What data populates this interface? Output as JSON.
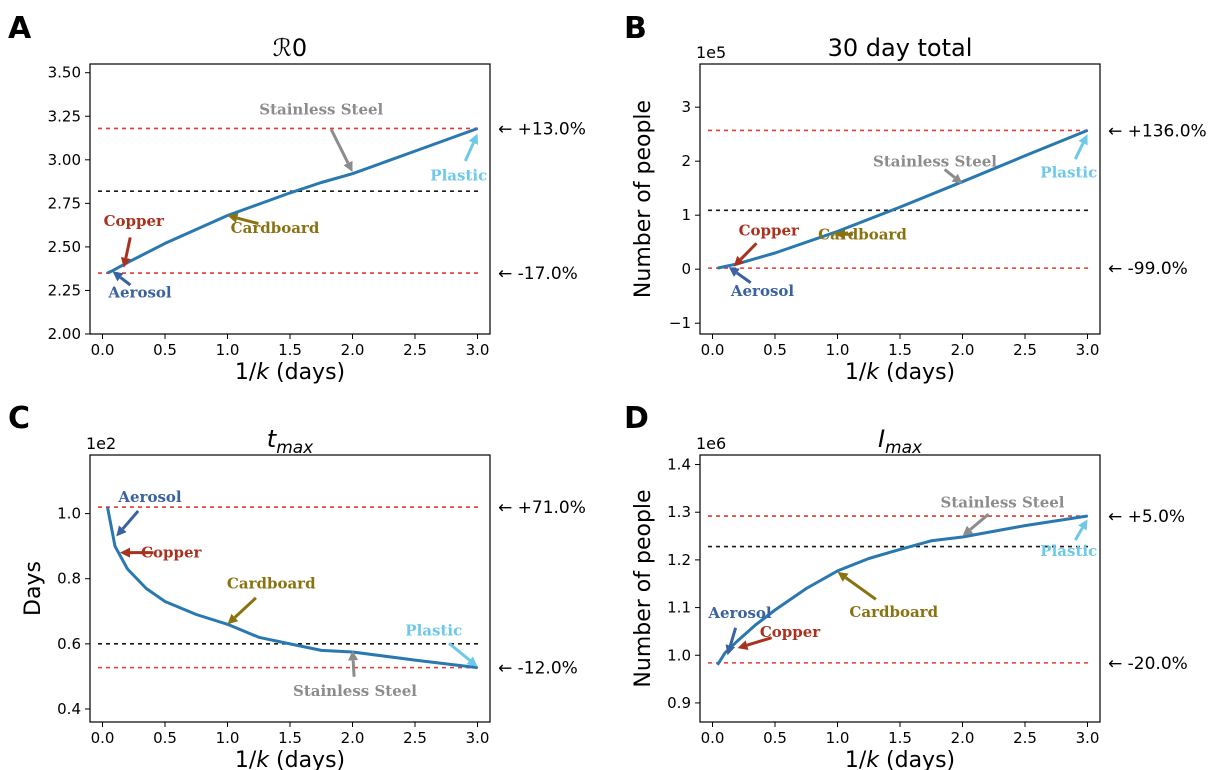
{
  "chart_data": [
    {
      "type": "line",
      "panel_label": "A",
      "title": "ℛ0",
      "xlabel": "1/k (days)",
      "ylabel": "",
      "exponent_label": "",
      "xlim": [
        -0.1,
        3.1
      ],
      "ylim": [
        2.0,
        3.55
      ],
      "xticks": [
        0.0,
        0.5,
        1.0,
        1.5,
        2.0,
        2.5,
        3.0
      ],
      "xticklabels": [
        "0.0",
        "0.5",
        "1.0",
        "1.5",
        "2.0",
        "2.5",
        "3.0"
      ],
      "yticks": [
        2.0,
        2.25,
        2.5,
        2.75,
        3.0,
        3.25,
        3.5
      ],
      "yticklabels": [
        "2.00",
        "2.25",
        "2.50",
        "2.75",
        "3.00",
        "3.25",
        "3.50"
      ],
      "series": [
        {
          "x": [
            0.04,
            0.07,
            0.2,
            0.5,
            1.0,
            1.5,
            1.75,
            2.0,
            2.5,
            3.0
          ],
          "y": [
            2.35,
            2.36,
            2.41,
            2.52,
            2.68,
            2.81,
            2.87,
            2.92,
            3.05,
            3.18
          ]
        }
      ],
      "hlines": [
        {
          "y": 3.18,
          "color": "red",
          "label": "← +13.0%"
        },
        {
          "y": 2.82,
          "color": "black",
          "label": ""
        },
        {
          "y": 2.35,
          "color": "red",
          "label": "← -17.0%"
        }
      ],
      "annotations": [
        {
          "text": "Stainless Steel",
          "color": "gray",
          "tx": 1.75,
          "ty": 3.26,
          "ax": 2.0,
          "ay": 2.93
        },
        {
          "text": "Plastic",
          "color": "lightblue",
          "tx": 2.85,
          "ty": 2.88,
          "ax": 3.0,
          "ay": 3.15
        },
        {
          "text": "Copper",
          "color": "darkred",
          "tx": 0.25,
          "ty": 2.62,
          "ax": 0.17,
          "ay": 2.38
        },
        {
          "text": "Cardboard",
          "color": "olive",
          "tx": 1.38,
          "ty": 2.58,
          "ax": 1.0,
          "ay": 2.68
        },
        {
          "text": "Aerosol",
          "color": "darkblue",
          "tx": 0.3,
          "ty": 2.21,
          "ax": 0.08,
          "ay": 2.36
        }
      ]
    },
    {
      "type": "line",
      "panel_label": "B",
      "title": "30 day total",
      "xlabel": "1/k (days)",
      "ylabel": "Number of people",
      "exponent_label": "1e5",
      "xlim": [
        -0.1,
        3.1
      ],
      "ylim": [
        -1.2,
        3.8
      ],
      "xticks": [
        0.0,
        0.5,
        1.0,
        1.5,
        2.0,
        2.5,
        3.0
      ],
      "xticklabels": [
        "0.0",
        "0.5",
        "1.0",
        "1.5",
        "2.0",
        "2.5",
        "3.0"
      ],
      "yticks": [
        -1,
        0,
        1,
        2,
        3
      ],
      "yticklabels": [
        "−1",
        "0",
        "1",
        "2",
        "3"
      ],
      "series": [
        {
          "x": [
            0.04,
            0.2,
            0.5,
            1.0,
            1.5,
            2.0,
            2.5,
            3.0
          ],
          "y": [
            0.02,
            0.1,
            0.3,
            0.7,
            1.15,
            1.62,
            2.1,
            2.57
          ]
        }
      ],
      "hlines": [
        {
          "y": 2.57,
          "color": "red",
          "label": "← +136.0%"
        },
        {
          "y": 1.09,
          "color": "black",
          "label": ""
        },
        {
          "y": 0.02,
          "color": "red",
          "label": "← -99.0%"
        }
      ],
      "annotations": [
        {
          "text": "Stainless Steel",
          "color": "gray",
          "tx": 1.78,
          "ty": 1.9,
          "ax": 2.0,
          "ay": 1.58
        },
        {
          "text": "Plastic",
          "color": "lightblue",
          "tx": 2.85,
          "ty": 1.7,
          "ax": 3.0,
          "ay": 2.5
        },
        {
          "text": "Copper",
          "color": "darkred",
          "tx": 0.45,
          "ty": 0.62,
          "ax": 0.17,
          "ay": 0.05
        },
        {
          "text": "Cardboard",
          "color": "olive",
          "tx": 1.2,
          "ty": 0.55,
          "ax": 0.98,
          "ay": 0.65
        },
        {
          "text": "Aerosol",
          "color": "darkblue",
          "tx": 0.4,
          "ty": -0.5,
          "ax": 0.13,
          "ay": 0.04
        }
      ]
    },
    {
      "type": "line",
      "panel_label": "C",
      "title": "tmax",
      "xlabel": "1/k (days)",
      "ylabel": "Days",
      "exponent_label": "1e2",
      "xlim": [
        -0.1,
        3.1
      ],
      "ylim": [
        0.36,
        1.18
      ],
      "xticks": [
        0.0,
        0.5,
        1.0,
        1.5,
        2.0,
        2.5,
        3.0
      ],
      "xticklabels": [
        "0.0",
        "0.5",
        "1.0",
        "1.5",
        "2.0",
        "2.5",
        "3.0"
      ],
      "yticks": [
        0.4,
        0.6,
        0.8,
        1.0
      ],
      "yticklabels": [
        "0.4",
        "0.6",
        "0.8",
        "1.0"
      ],
      "series": [
        {
          "x": [
            0.04,
            0.1,
            0.2,
            0.35,
            0.5,
            0.75,
            1.0,
            1.25,
            1.5,
            1.75,
            2.0,
            2.5,
            3.0
          ],
          "y": [
            1.02,
            0.9,
            0.83,
            0.77,
            0.73,
            0.69,
            0.66,
            0.62,
            0.6,
            0.58,
            0.575,
            0.55,
            0.527
          ]
        }
      ],
      "hlines": [
        {
          "y": 1.02,
          "color": "red",
          "label": "← +71.0%"
        },
        {
          "y": 0.6,
          "color": "black",
          "label": ""
        },
        {
          "y": 0.527,
          "color": "red",
          "label": "← -12.0%"
        }
      ],
      "annotations": [
        {
          "text": "Aerosol",
          "color": "darkblue",
          "tx": 0.38,
          "ty": 1.035,
          "ax": 0.11,
          "ay": 0.93
        },
        {
          "text": "Copper",
          "color": "darkred",
          "tx": 0.55,
          "ty": 0.865,
          "ax": 0.14,
          "ay": 0.88
        },
        {
          "text": "Cardboard",
          "color": "olive",
          "tx": 1.35,
          "ty": 0.77,
          "ax": 1.0,
          "ay": 0.66
        },
        {
          "text": "Plastic",
          "color": "lightblue",
          "tx": 2.65,
          "ty": 0.625,
          "ax": 3.0,
          "ay": 0.53
        },
        {
          "text": "Stainless Steel",
          "color": "gray",
          "tx": 2.02,
          "ty": 0.44,
          "ax": 2.0,
          "ay": 0.58
        }
      ]
    },
    {
      "type": "line",
      "panel_label": "D",
      "title": "Imax",
      "xlabel": "1/k (days)",
      "ylabel": "Number of people",
      "exponent_label": "1e6",
      "xlim": [
        -0.1,
        3.1
      ],
      "ylim": [
        0.86,
        1.42
      ],
      "xticks": [
        0.0,
        0.5,
        1.0,
        1.5,
        2.0,
        2.5,
        3.0
      ],
      "xticklabels": [
        "0.0",
        "0.5",
        "1.0",
        "1.5",
        "2.0",
        "2.5",
        "3.0"
      ],
      "yticks": [
        0.9,
        1.0,
        1.1,
        1.2,
        1.3,
        1.4
      ],
      "yticklabels": [
        "0.9",
        "1.0",
        "1.1",
        "1.2",
        "1.3",
        "1.4"
      ],
      "series": [
        {
          "x": [
            0.04,
            0.1,
            0.2,
            0.35,
            0.5,
            0.75,
            1.0,
            1.25,
            1.5,
            1.75,
            2.0,
            2.5,
            3.0
          ],
          "y": [
            0.98,
            1.005,
            1.03,
            1.065,
            1.095,
            1.14,
            1.177,
            1.203,
            1.222,
            1.24,
            1.248,
            1.272,
            1.292
          ]
        }
      ],
      "hlines": [
        {
          "y": 1.292,
          "color": "red",
          "label": "← +5.0%"
        },
        {
          "y": 1.228,
          "color": "black",
          "label": ""
        },
        {
          "y": 0.984,
          "color": "red",
          "label": "← -20.0%"
        }
      ],
      "annotations": [
        {
          "text": "Stainless Steel",
          "color": "gray",
          "tx": 2.32,
          "ty": 1.31,
          "ax": 2.0,
          "ay": 1.25
        },
        {
          "text": "Plastic",
          "color": "lightblue",
          "tx": 2.85,
          "ty": 1.208,
          "ax": 3.0,
          "ay": 1.285
        },
        {
          "text": "Aerosol",
          "color": "darkblue",
          "tx": 0.22,
          "ty": 1.078,
          "ax": 0.12,
          "ay": 1.0
        },
        {
          "text": "Copper",
          "color": "darkred",
          "tx": 0.62,
          "ty": 1.038,
          "ax": 0.2,
          "ay": 1.015
        },
        {
          "text": "Cardboard",
          "color": "olive",
          "tx": 1.45,
          "ty": 1.08,
          "ax": 1.0,
          "ay": 1.175
        }
      ]
    }
  ],
  "colors": {
    "line": "#2978b0",
    "red": "#e03c32",
    "black": "#1a1a1a",
    "gray": "#8c8c8c",
    "lightblue": "#6ec8e8",
    "darkred": "#a8321e",
    "olive": "#8a7210",
    "darkblue": "#3a62a0"
  }
}
